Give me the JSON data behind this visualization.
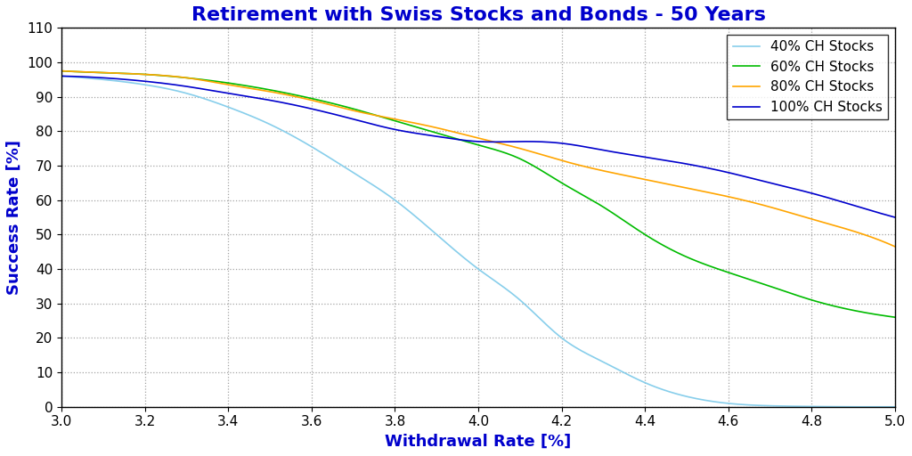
{
  "title": "Retirement with Swiss Stocks and Bonds - 50 Years",
  "xlabel": "Withdrawal Rate [%]",
  "ylabel": "Success Rate [%]",
  "xlim": [
    3.0,
    5.0
  ],
  "ylim": [
    0,
    110
  ],
  "yticks": [
    0,
    10,
    20,
    30,
    40,
    50,
    60,
    70,
    80,
    90,
    100,
    110
  ],
  "xticks": [
    3.0,
    3.2,
    3.4,
    3.6,
    3.8,
    4.0,
    4.2,
    4.4,
    4.6,
    4.8,
    5.0
  ],
  "title_color": "#0000cc",
  "xlabel_color": "#0000cc",
  "ylabel_color": "#0000cc",
  "background_color": "#ffffff",
  "grid_color": "#999999",
  "series": [
    {
      "label": "40% CH Stocks",
      "color": "#87ceeb",
      "linestyle": "-",
      "linewidth": 1.2,
      "x": [
        3.0,
        3.1,
        3.2,
        3.3,
        3.4,
        3.5,
        3.6,
        3.7,
        3.8,
        3.9,
        4.0,
        4.1,
        4.2,
        4.3,
        4.4,
        4.5,
        4.6,
        4.7,
        4.8,
        4.9,
        5.0
      ],
      "y": [
        96.0,
        95.0,
        93.5,
        91.0,
        87.0,
        82.0,
        75.5,
        68.0,
        60.0,
        50.0,
        40.0,
        31.0,
        20.0,
        13.0,
        7.0,
        3.0,
        1.0,
        0.3,
        0.1,
        0.0,
        0.0
      ]
    },
    {
      "label": "60% CH Stocks",
      "color": "#00bb00",
      "linestyle": "-",
      "linewidth": 1.2,
      "x": [
        3.0,
        3.1,
        3.2,
        3.3,
        3.4,
        3.5,
        3.6,
        3.7,
        3.8,
        3.9,
        4.0,
        4.1,
        4.2,
        4.3,
        4.4,
        4.5,
        4.6,
        4.7,
        4.8,
        4.9,
        5.0
      ],
      "y": [
        97.5,
        97.0,
        96.5,
        95.5,
        94.0,
        92.0,
        89.5,
        86.5,
        83.0,
        79.5,
        76.0,
        72.0,
        65.0,
        58.0,
        50.0,
        43.5,
        39.0,
        35.0,
        31.0,
        28.0,
        26.0
      ]
    },
    {
      "label": "80% CH Stocks",
      "color": "#ffa500",
      "linestyle": "-",
      "linewidth": 1.2,
      "x": [
        3.0,
        3.1,
        3.2,
        3.3,
        3.4,
        3.5,
        3.6,
        3.7,
        3.8,
        3.9,
        4.0,
        4.1,
        4.2,
        4.3,
        4.4,
        4.5,
        4.6,
        4.7,
        4.8,
        4.9,
        5.0
      ],
      "y": [
        97.5,
        97.0,
        96.5,
        95.5,
        93.5,
        91.5,
        89.0,
        86.0,
        83.5,
        81.0,
        78.0,
        75.0,
        71.5,
        68.5,
        66.0,
        63.5,
        61.0,
        58.0,
        54.5,
        51.0,
        46.5
      ]
    },
    {
      "label": "100% CH Stocks",
      "color": "#0000cc",
      "linestyle": "-",
      "linewidth": 1.2,
      "x": [
        3.0,
        3.1,
        3.2,
        3.3,
        3.4,
        3.5,
        3.6,
        3.7,
        3.8,
        3.9,
        4.0,
        4.1,
        4.2,
        4.3,
        4.4,
        4.5,
        4.6,
        4.7,
        4.8,
        4.9,
        5.0
      ],
      "y": [
        96.0,
        95.5,
        94.5,
        93.0,
        91.0,
        89.0,
        86.5,
        83.5,
        80.5,
        78.5,
        77.0,
        77.0,
        76.5,
        74.5,
        72.5,
        70.5,
        68.0,
        65.0,
        62.0,
        58.5,
        55.0
      ]
    }
  ],
  "legend": {
    "loc": "upper right",
    "fontsize": 11,
    "frameon": true,
    "title_fontsize": 11
  },
  "tick_fontsize": 11,
  "axis_label_fontsize": 13,
  "title_fontsize": 16
}
